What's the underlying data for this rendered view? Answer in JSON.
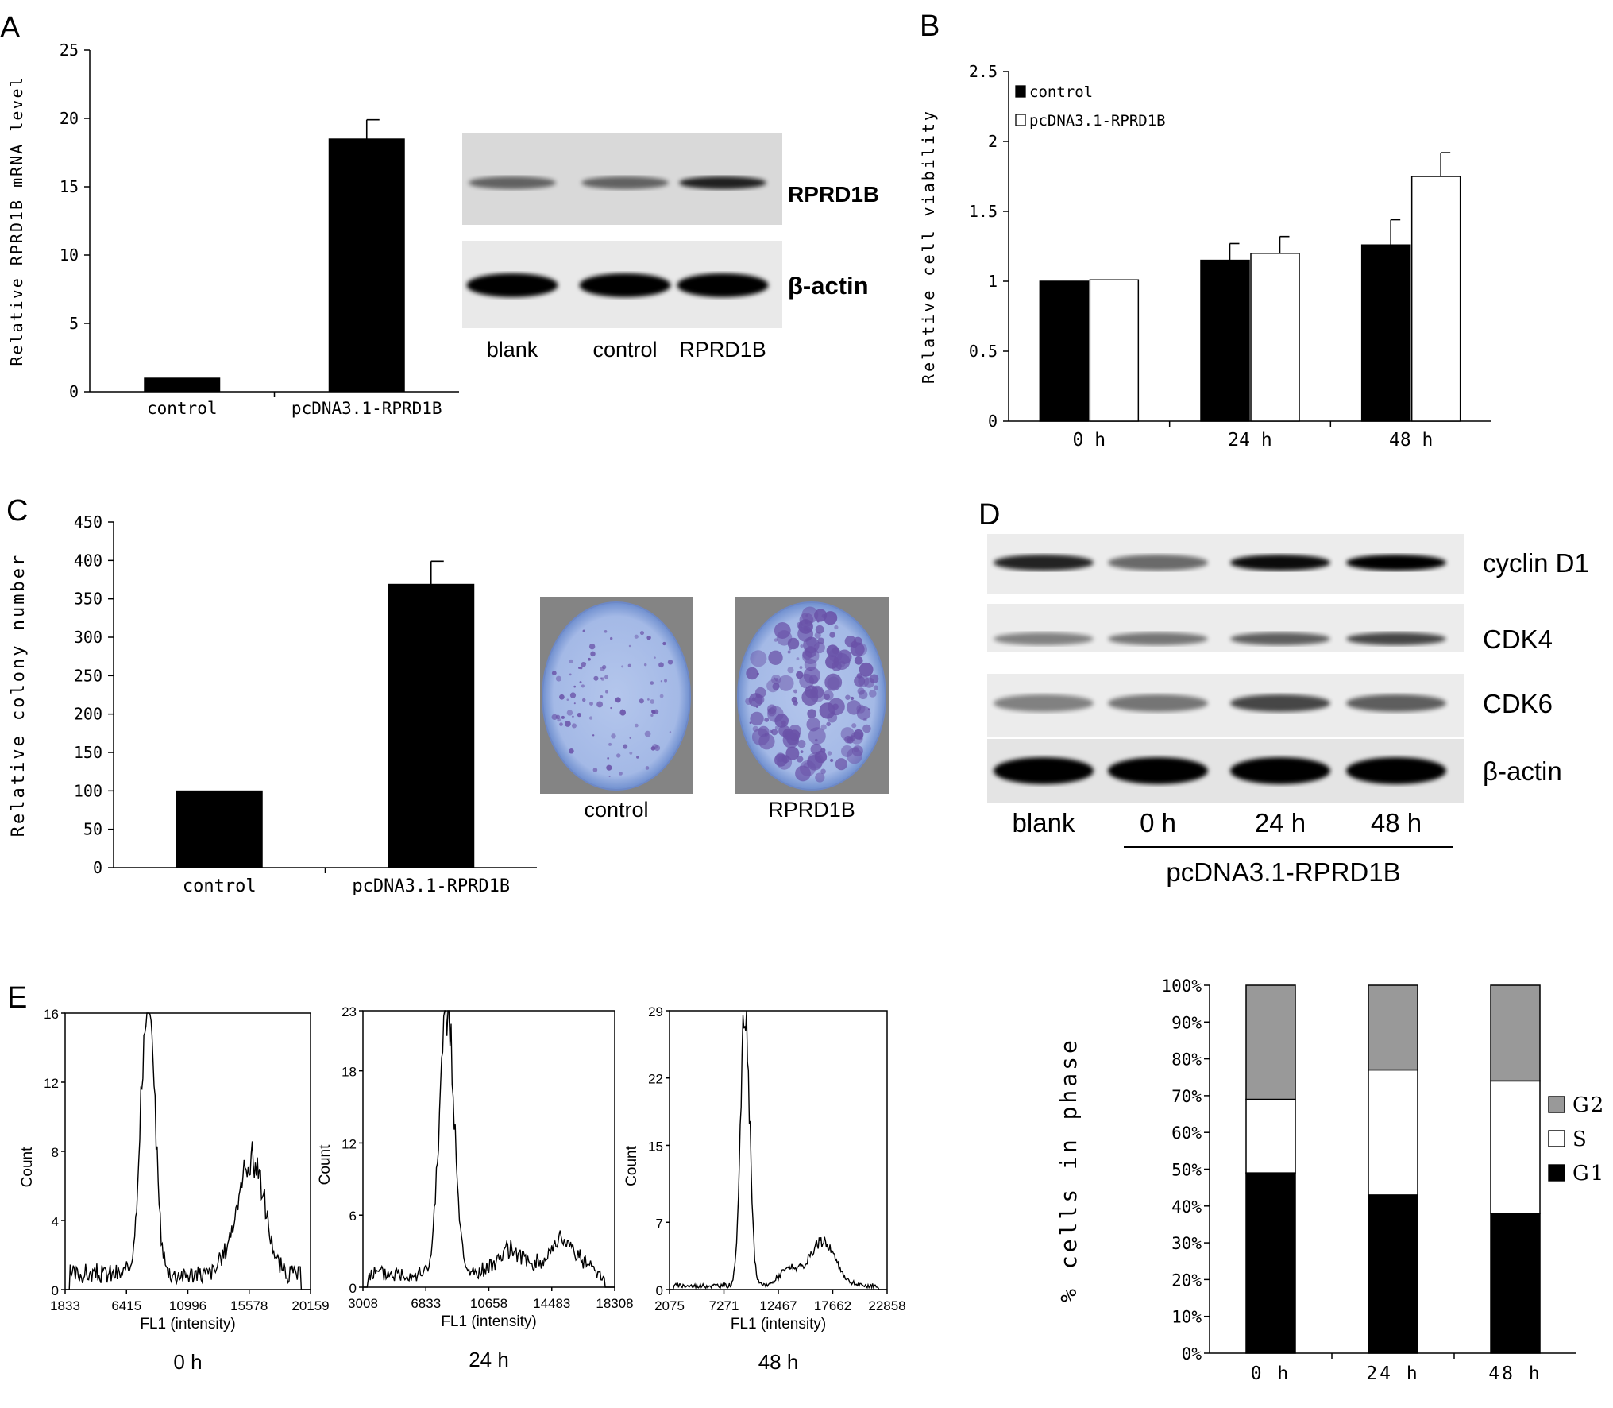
{
  "panels": {
    "A": {
      "letter": "A",
      "blot": {
        "bands": [
          "RPRD1B",
          "β-actin"
        ],
        "lanes": [
          "blank",
          "control",
          "RPRD1B"
        ],
        "intensity": {
          "RPRD1B": [
            0.55,
            0.55,
            0.85
          ],
          "β-actin": [
            1.0,
            1.0,
            1.0
          ]
        }
      }
    },
    "B": {
      "letter": "B"
    },
    "C": {
      "letter": "C",
      "dishes": [
        "control",
        "RPRD1B"
      ]
    },
    "D": {
      "letter": "D",
      "bands": [
        "cyclin D1",
        "CDK4",
        "CDK6",
        "β-actin"
      ],
      "lanes": [
        "blank",
        "0 h",
        "24 h",
        "48 h"
      ],
      "group_label": "pcDNA3.1-RPRD1B",
      "intensity": {
        "cyclin D1": [
          0.85,
          0.55,
          0.95,
          1.0
        ],
        "CDK4": [
          0.45,
          0.5,
          0.6,
          0.7
        ],
        "CDK6": [
          0.45,
          0.5,
          0.7,
          0.6
        ],
        "β-actin": [
          1.0,
          1.0,
          1.0,
          1.0
        ]
      }
    },
    "E": {
      "letter": "E"
    }
  },
  "chart_data": [
    {
      "id": "A",
      "type": "bar",
      "categories": [
        "control",
        "pcDNA3.1-RPRD1B"
      ],
      "values": [
        1,
        18.5
      ],
      "errors": [
        0,
        1.4
      ],
      "ylabel": "Relative RPRD1B mRNA level",
      "ylim": [
        0,
        25
      ],
      "yticks": [
        0,
        5,
        10,
        15,
        20,
        25
      ],
      "bar_color": "#000000"
    },
    {
      "id": "B",
      "type": "bar",
      "categories": [
        "0 h",
        "24 h",
        "48 h"
      ],
      "series": [
        {
          "name": "control",
          "values": [
            1.0,
            1.15,
            1.26
          ],
          "errors": [
            0,
            0.12,
            0.18
          ],
          "color": "#000000"
        },
        {
          "name": "pcDNA3.1-RPRD1B",
          "values": [
            1.01,
            1.2,
            1.75
          ],
          "errors": [
            0,
            0.12,
            0.17
          ],
          "color": "#ffffff"
        }
      ],
      "ylabel": "Relative cell viability",
      "ylim": [
        0,
        2.5
      ],
      "yticks": [
        "0",
        "0.5",
        "1",
        "1.5",
        "2",
        "2.5"
      ],
      "legend": "top-left"
    },
    {
      "id": "C",
      "type": "bar",
      "categories": [
        "control",
        "pcDNA3.1-RPRD1B"
      ],
      "values": [
        100,
        369
      ],
      "errors": [
        0,
        30
      ],
      "ylabel": "Relative colony number",
      "ylim": [
        0,
        450
      ],
      "yticks": [
        0,
        50,
        100,
        150,
        200,
        250,
        300,
        350,
        400,
        450
      ],
      "bar_color": "#000000"
    },
    {
      "id": "E1",
      "type": "line",
      "title": "0 h",
      "xlabel": "FL1 (intensity)",
      "ylabel": "Count",
      "xlim": [
        1833,
        20159
      ],
      "xticks": [
        1833,
        6415,
        10996,
        15578,
        20159
      ],
      "ylim": [
        0,
        16
      ],
      "yticks": [
        0,
        4,
        8,
        12,
        16
      ],
      "peaks": [
        {
          "center": 8000,
          "height": 15.8,
          "width": 520
        },
        {
          "center": 15400,
          "height": 5.0,
          "width": 1000
        },
        {
          "center": 16300,
          "height": 2.5,
          "width": 700
        }
      ],
      "baseline": 0.9
    },
    {
      "id": "E2",
      "type": "line",
      "title": "24 h",
      "xlabel": "FL1 (intensity)",
      "ylabel": "Count",
      "xlim": [
        3008,
        18308
      ],
      "xticks": [
        3008,
        6833,
        10658,
        14483,
        18308
      ],
      "ylim": [
        0,
        23
      ],
      "yticks": [
        0,
        6,
        12,
        18,
        23
      ],
      "peaks": [
        {
          "center": 8100,
          "height": 22.7,
          "width": 430
        },
        {
          "center": 12000,
          "height": 2.0,
          "width": 800
        },
        {
          "center": 15200,
          "height": 2.8,
          "width": 900
        }
      ],
      "baseline": 1.1
    },
    {
      "id": "E3",
      "type": "line",
      "title": "48 h",
      "xlabel": "FL1 (intensity)",
      "ylabel": "Count",
      "xlim": [
        2075,
        22858
      ],
      "xticks": [
        2075,
        7271,
        12467,
        17662,
        22858
      ],
      "ylim": [
        0,
        29
      ],
      "yticks": [
        0,
        7,
        15,
        22,
        29
      ],
      "peaks": [
        {
          "center": 9300,
          "height": 28.8,
          "width": 430
        },
        {
          "center": 16700,
          "height": 4.6,
          "width": 1200
        },
        {
          "center": 13500,
          "height": 1.8,
          "width": 900
        }
      ],
      "baseline": 0.4
    },
    {
      "id": "E4",
      "type": "bar",
      "stacked": true,
      "categories": [
        "0 h",
        "24 h",
        "48 h"
      ],
      "series": [
        {
          "name": "G1",
          "values": [
            49,
            43,
            38
          ],
          "color": "#000000"
        },
        {
          "name": "S",
          "values": [
            20,
            34,
            36
          ],
          "color": "#ffffff"
        },
        {
          "name": "G2",
          "values": [
            31,
            23,
            26
          ],
          "color": "#999999"
        }
      ],
      "ylabel": "% cells in phase",
      "ylim": [
        0,
        100
      ],
      "yticks": [
        "0%",
        "10%",
        "20%",
        "30%",
        "40%",
        "50%",
        "60%",
        "70%",
        "80%",
        "90%",
        "100%"
      ],
      "legend": "right"
    }
  ]
}
